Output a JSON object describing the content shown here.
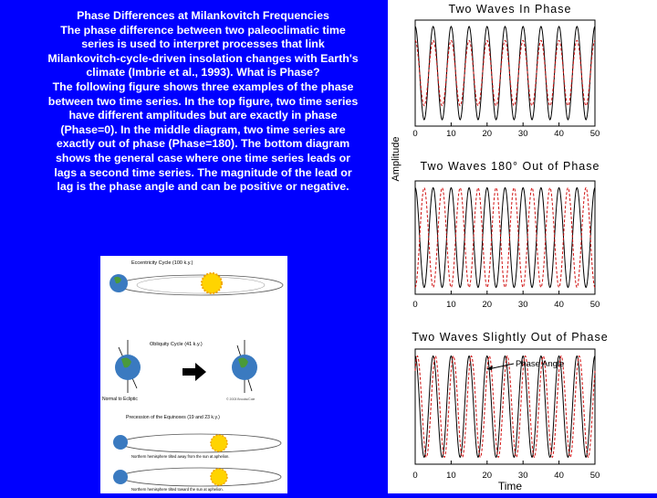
{
  "slide": {
    "title": "Phase Differences at Milankovitch Frequencies",
    "paragraph1": "The phase difference between two paleoclimatic time series is used to interpret processes that link Milankovitch-cycle-driven insolation changes with Earth's climate (Imbrie et al., 1993). What is Phase?",
    "paragraph2": "The following figure shows three examples of the phase between two time series. In the top figure, two time series have different amplitudes but are exactly in phase (Phase=0). In the middle diagram, two time series are exactly out of phase (Phase=180). The bottom diagram shows the general case where one time series leads or lags a second time series. The magnitude of the lead or lag is the phase angle and can be positive or negative."
  },
  "illustration": {
    "eccentricity": "Eccentricity Cycle (100 k.y.)",
    "obliquity": "Obliquity Cycle (41 k.y.)",
    "normal_label": "Normal to Ecliptic",
    "copyright": "© 2003 Brooks/Cole",
    "precession": "Precession of the Equinoxes (19 and 23 k.y.)",
    "nh_away": "Northern hemisphere tilted away from the sun at aphelion.",
    "nh_toward": "Northern hemisphere tilted toward the sun at aphelion."
  },
  "figure": {
    "ylabel": "Amplitude",
    "xlabel": "Time",
    "phase_angle_label": "Phase Angle"
  },
  "chart_data": [
    {
      "type": "line",
      "title": "Two Waves In Phase",
      "xlim": [
        0,
        50
      ],
      "xticks": [
        "0",
        "10",
        "20",
        "30",
        "40",
        "50"
      ],
      "series": [
        {
          "style": "solid",
          "period": 5,
          "phase_deg": 0,
          "amplitude": 1.0
        },
        {
          "style": "dashed",
          "period": 5,
          "phase_deg": 0,
          "amplitude": 0.7
        }
      ]
    },
    {
      "type": "line",
      "title": "Two Waves 180° Out of Phase",
      "xlim": [
        0,
        50
      ],
      "xticks": [
        "0",
        "10",
        "20",
        "30",
        "40",
        "50"
      ],
      "series": [
        {
          "style": "solid",
          "period": 5,
          "phase_deg": 0,
          "amplitude": 1.0
        },
        {
          "style": "dashed",
          "period": 5,
          "phase_deg": 180,
          "amplitude": 1.0
        }
      ]
    },
    {
      "type": "line",
      "title": "Two Waves Slightly Out of Phase",
      "xlim": [
        0,
        50
      ],
      "xticks": [
        "0",
        "10",
        "20",
        "30",
        "40",
        "50"
      ],
      "series": [
        {
          "style": "solid",
          "period": 5,
          "phase_deg": 0,
          "amplitude": 1.0
        },
        {
          "style": "dashed",
          "period": 5,
          "phase_deg": 45,
          "amplitude": 1.0
        }
      ]
    }
  ]
}
